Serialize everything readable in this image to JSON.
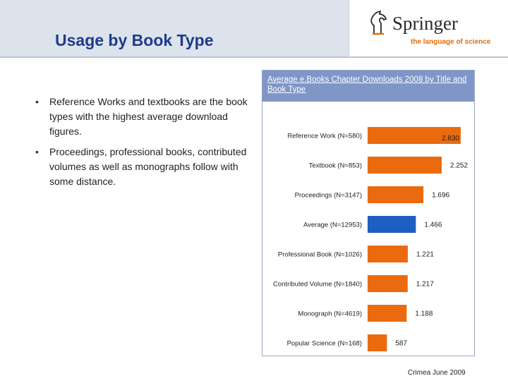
{
  "header": {
    "title": "Usage by Book Type"
  },
  "logo": {
    "word": "Springer",
    "tagline": "the language of science"
  },
  "bullets": [
    "Reference Works and textbooks are the book types with the highest average download figures.",
    "Proceedings, professional books, contributed volumes as well as monographs follow with some distance."
  ],
  "chart_data": {
    "type": "bar",
    "orientation": "horizontal",
    "title": "Average e.Books Chapter Downloads 2008 by Title and Book Type",
    "categories": [
      "Reference Work (N=580)",
      "Textbook (N=853)",
      "Proceedings (N=3147)",
      "Average (N=12953)",
      "Professional Book (N=1026)",
      "Contributed Volume (N=1840)",
      "Monograph (N=4619)",
      "Popular Science (N=168)"
    ],
    "values": [
      2830,
      2252,
      1696,
      1466,
      1221,
      1217,
      1188,
      587
    ],
    "value_labels": [
      "2.830",
      "2.252",
      "1.696",
      "1.466",
      "1.221",
      "1.217",
      "1.188",
      "587"
    ],
    "highlight_index": 3,
    "colors": {
      "bar": "#ea6b0e",
      "highlight": "#1f5fc1",
      "header": "#7f96c7"
    },
    "xlim": [
      0,
      3000
    ],
    "grid": false,
    "legend": "none"
  },
  "footer": {
    "text": "Crimea June 2009"
  }
}
